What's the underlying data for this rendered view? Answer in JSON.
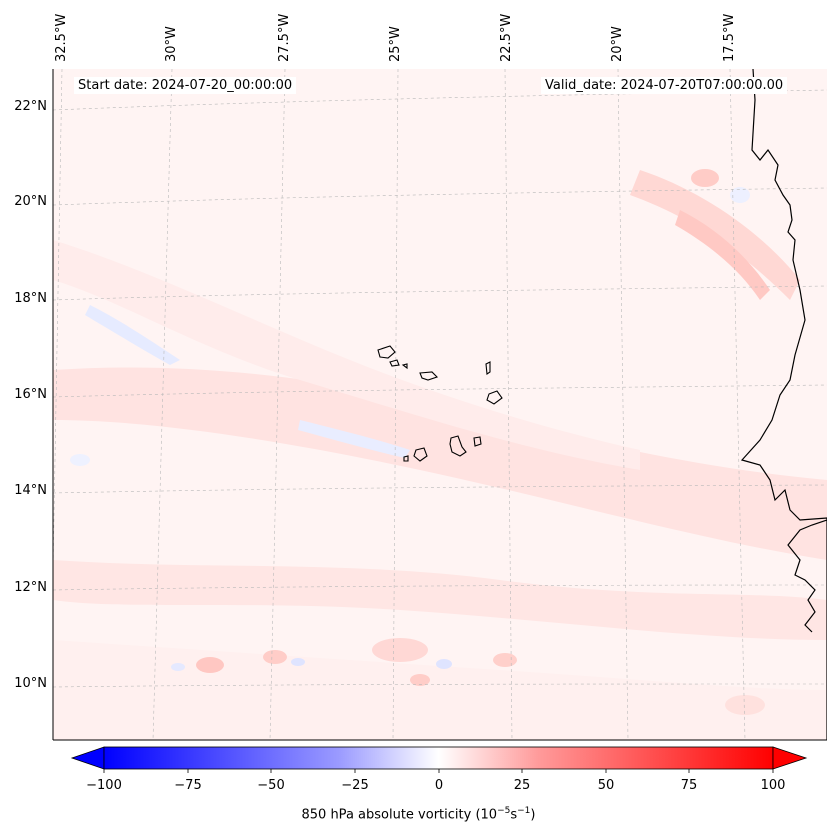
{
  "map": {
    "variable": "850 hPa absolute vorticity",
    "units": "10⁻⁵s⁻¹",
    "colorbar_label_prefix": "850 hPa absolute vorticity (10",
    "colorbar_label_exp1": "−5",
    "colorbar_label_mid": "s",
    "colorbar_label_exp2": "−1",
    "colorbar_label_suffix": ")",
    "start_date": "Start date: 2024-07-20_00:00:00",
    "valid_date": "Valid_date: 2024-07-20T07:00:00.00",
    "lon_labels": [
      "32.5°W",
      "30°W",
      "27.5°W",
      "25°W",
      "22.5°W",
      "20°W",
      "17.5°W"
    ],
    "lat_labels": [
      "22°N",
      "20°N",
      "18°N",
      "16°N",
      "14°N",
      "12°N",
      "10°N"
    ],
    "colorbar": {
      "min": -100,
      "max": 100,
      "ticks": [
        "−100",
        "−75",
        "−50",
        "−25",
        "0",
        "25",
        "50",
        "75",
        "100"
      ],
      "colors": {
        "negative": "#0000ff",
        "zero": "#ffffff",
        "positive": "#ff0000"
      }
    }
  }
}
